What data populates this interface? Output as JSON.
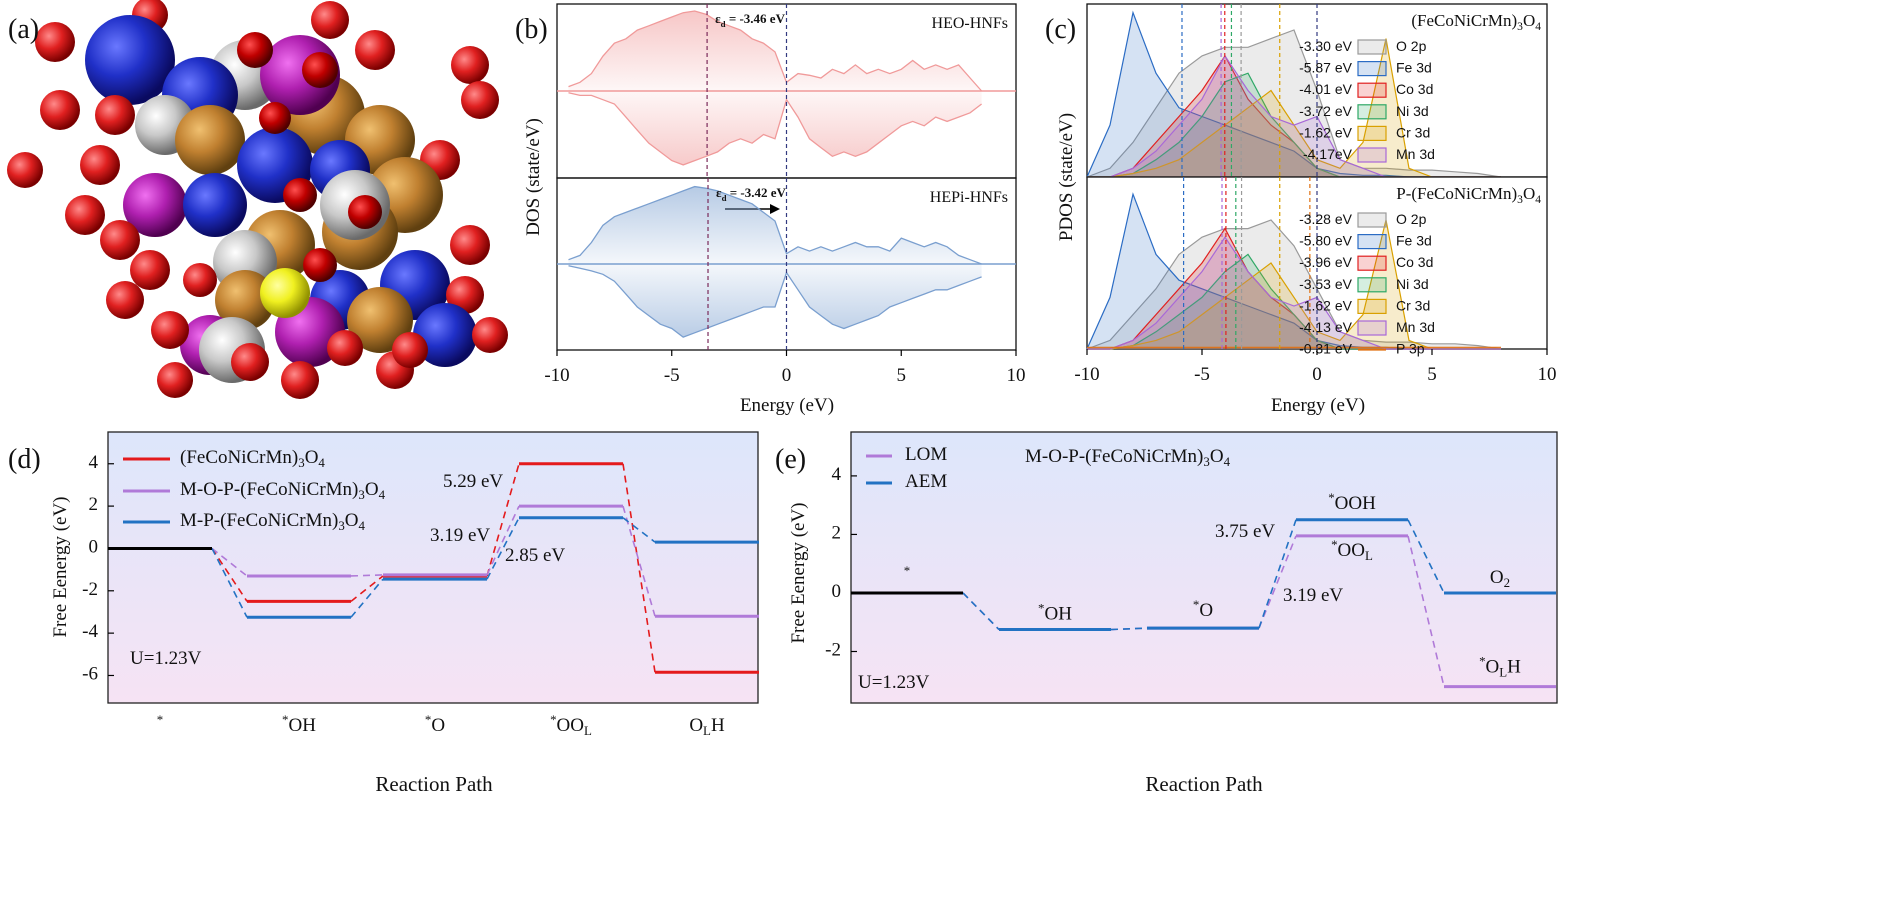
{
  "panel_labels": [
    "(a)",
    "(b)",
    "(c)",
    "(d)",
    "(e)"
  ],
  "chart_data": [
    {
      "type": "dos",
      "xlabel": "Energy (eV)",
      "ylabel": "DOS (state/eV)",
      "xlim": [
        -10,
        10
      ],
      "xticks": [
        -10,
        -5,
        0,
        5,
        10
      ],
      "x": [
        -9.5,
        -9,
        -8.5,
        -8,
        -7.5,
        -7,
        -6.5,
        -6,
        -5.5,
        -5,
        -4.5,
        -4,
        -3.5,
        -3,
        -2.5,
        -2,
        -1.5,
        -1,
        -0.5,
        0,
        0.5,
        1,
        1.5,
        2,
        2.5,
        3,
        3.5,
        4,
        4.5,
        5,
        5.5,
        6,
        6.5,
        7,
        7.5,
        8,
        8.5
      ],
      "subplots": [
        {
          "title": "HEO-HNFs",
          "color": "#f09a9a",
          "ylim": [
            -1,
            1
          ],
          "vlines": [
            -3.46,
            0
          ],
          "annotation": "εd = -3.46 eV",
          "up": [
            0.05,
            0.1,
            0.2,
            0.4,
            0.55,
            0.6,
            0.7,
            0.75,
            0.8,
            0.85,
            0.9,
            0.92,
            0.88,
            0.8,
            0.75,
            0.7,
            0.6,
            0.55,
            0.45,
            0.1,
            0.2,
            0.18,
            0.15,
            0.25,
            0.2,
            0.3,
            0.2,
            0.25,
            0.2,
            0.25,
            0.35,
            0.25,
            0.3,
            0.25,
            0.3,
            0.15,
            0
          ],
          "down": [
            -0.02,
            -0.05,
            -0.05,
            -0.1,
            -0.15,
            -0.3,
            -0.45,
            -0.6,
            -0.7,
            -0.8,
            -0.85,
            -0.8,
            -0.75,
            -0.7,
            -0.6,
            -0.55,
            -0.6,
            -0.5,
            -0.55,
            -0.1,
            -0.3,
            -0.55,
            -0.65,
            -0.75,
            -0.7,
            -0.75,
            -0.7,
            -0.6,
            -0.5,
            -0.4,
            -0.35,
            -0.4,
            -0.3,
            -0.35,
            -0.3,
            -0.25,
            -0.15
          ]
        },
        {
          "title": "HEPi-HNFs",
          "color": "#7a9fcf",
          "ylim": [
            -1,
            1
          ],
          "vlines": [
            -3.42,
            0
          ],
          "annotation": "εd = -3.42 eV",
          "up": [
            0.05,
            0.1,
            0.25,
            0.45,
            0.55,
            0.6,
            0.65,
            0.7,
            0.75,
            0.8,
            0.85,
            0.9,
            0.88,
            0.85,
            0.8,
            0.75,
            0.7,
            0.6,
            0.5,
            0.12,
            0.2,
            0.15,
            0.2,
            0.15,
            0.2,
            0.25,
            0.2,
            0.2,
            0.15,
            0.3,
            0.25,
            0.2,
            0.25,
            0.2,
            0.1,
            0.05,
            0
          ],
          "down": [
            -0.02,
            -0.05,
            -0.08,
            -0.12,
            -0.2,
            -0.35,
            -0.5,
            -0.6,
            -0.7,
            -0.75,
            -0.85,
            -0.8,
            -0.75,
            -0.7,
            -0.65,
            -0.6,
            -0.55,
            -0.5,
            -0.5,
            -0.1,
            -0.3,
            -0.5,
            -0.6,
            -0.7,
            -0.75,
            -0.7,
            -0.65,
            -0.6,
            -0.5,
            -0.45,
            -0.4,
            -0.35,
            -0.3,
            -0.3,
            -0.25,
            -0.2,
            -0.15
          ]
        }
      ]
    },
    {
      "type": "pdos",
      "xlabel": "Energy (eV)",
      "ylabel": "PDOS (state/eV)",
      "xlim": [
        -10,
        10
      ],
      "xticks": [
        -10,
        -5,
        0,
        5,
        10
      ],
      "x": [
        -10,
        -9,
        -8,
        -7,
        -6,
        -5,
        -4,
        -3,
        -2,
        -1,
        0,
        1,
        2,
        3,
        4,
        5,
        6,
        7,
        8
      ],
      "subplots": [
        {
          "title": "(FeCoNiCrMn)3O4",
          "ylim": [
            0,
            1
          ],
          "vlines": [
            0
          ],
          "series": [
            {
              "name": "O 2p",
              "color": "#9a9a9a",
              "center": -3.3,
              "center_label": "-3.30 eV",
              "values": [
                0,
                0.05,
                0.2,
                0.4,
                0.6,
                0.7,
                0.75,
                0.75,
                0.8,
                0.85,
                0.5,
                0.1,
                0.05,
                0.05,
                0.04,
                0.04,
                0.03,
                0.02,
                0
              ]
            },
            {
              "name": "Fe 3d",
              "color": "#2b6cc4",
              "center": -5.87,
              "center_label": "-5.87 eV",
              "values": [
                0,
                0.3,
                0.95,
                0.6,
                0.4,
                0.35,
                0.3,
                0.25,
                0.2,
                0.15,
                0.05,
                0.02,
                0.01,
                0.01,
                0,
                0,
                0,
                0,
                0
              ]
            },
            {
              "name": "Co 3d",
              "color": "#e02020",
              "center": -4.01,
              "center_label": "-4.01 eV",
              "values": [
                0,
                0,
                0.05,
                0.2,
                0.35,
                0.5,
                0.7,
                0.45,
                0.3,
                0.2,
                0.05,
                0,
                0,
                0,
                0,
                0,
                0,
                0,
                0
              ]
            },
            {
              "name": "Ni 3d",
              "color": "#2ea866",
              "center": -3.72,
              "center_label": "-3.72 eV",
              "values": [
                0,
                0,
                0.02,
                0.1,
                0.2,
                0.35,
                0.55,
                0.6,
                0.35,
                0.2,
                0.05,
                0,
                0,
                0,
                0,
                0,
                0,
                0,
                0
              ]
            },
            {
              "name": "Cr 3d",
              "color": "#d9a000",
              "center": -1.62,
              "center_label": "-1.62 eV",
              "values": [
                0,
                0,
                0.02,
                0.05,
                0.1,
                0.2,
                0.3,
                0.4,
                0.5,
                0.3,
                0.1,
                0.05,
                0.2,
                0.8,
                0.05,
                0,
                0,
                0,
                0
              ]
            },
            {
              "name": "Mn 3d",
              "color": "#a868d8",
              "center": -4.17,
              "center_label": "-4.17eV",
              "values": [
                0,
                0,
                0.05,
                0.15,
                0.3,
                0.45,
                0.7,
                0.5,
                0.35,
                0.3,
                0.35,
                0.1,
                0.05,
                0,
                0,
                0,
                0,
                0,
                0
              ]
            }
          ]
        },
        {
          "title": "P-(FeCoNiCrMn)3O4",
          "ylim": [
            0,
            1
          ],
          "vlines": [
            0
          ],
          "series": [
            {
              "name": "O 2p",
              "color": "#9a9a9a",
              "center": -3.28,
              "center_label": "-3.28 eV",
              "values": [
                0,
                0.05,
                0.2,
                0.35,
                0.55,
                0.65,
                0.7,
                0.7,
                0.75,
                0.6,
                0.35,
                0.1,
                0.05,
                0.04,
                0.04,
                0.03,
                0.03,
                0.02,
                0
              ]
            },
            {
              "name": "Fe 3d",
              "color": "#2b6cc4",
              "center": -5.8,
              "center_label": "-5.80 eV",
              "values": [
                0,
                0.3,
                0.9,
                0.55,
                0.4,
                0.35,
                0.3,
                0.25,
                0.2,
                0.15,
                0.05,
                0.02,
                0.01,
                0.01,
                0,
                0,
                0,
                0,
                0
              ]
            },
            {
              "name": "Co 3d",
              "color": "#e02020",
              "center": -3.96,
              "center_label": "-3.96 eV",
              "values": [
                0,
                0,
                0.05,
                0.2,
                0.35,
                0.5,
                0.7,
                0.45,
                0.3,
                0.2,
                0.05,
                0,
                0,
                0,
                0,
                0,
                0,
                0,
                0
              ]
            },
            {
              "name": "Ni 3d",
              "color": "#2ea866",
              "center": -3.53,
              "center_label": "-3.53 eV",
              "values": [
                0,
                0,
                0.02,
                0.1,
                0.2,
                0.3,
                0.45,
                0.55,
                0.35,
                0.2,
                0.05,
                0,
                0,
                0,
                0,
                0,
                0,
                0,
                0
              ]
            },
            {
              "name": "Cr 3d",
              "color": "#d9a000",
              "center": -1.62,
              "center_label": "-1.62 eV",
              "values": [
                0,
                0,
                0.02,
                0.05,
                0.1,
                0.2,
                0.3,
                0.4,
                0.5,
                0.3,
                0.1,
                0.05,
                0.2,
                0.75,
                0.05,
                0,
                0,
                0,
                0
              ]
            },
            {
              "name": "Mn 3d",
              "color": "#a868d8",
              "center": -4.13,
              "center_label": "-4.13 eV",
              "values": [
                0,
                0,
                0.05,
                0.15,
                0.3,
                0.45,
                0.65,
                0.45,
                0.3,
                0.25,
                0.3,
                0.1,
                0.05,
                0,
                0,
                0,
                0,
                0,
                0
              ]
            },
            {
              "name": "P 3p",
              "color": "#e07010",
              "center": -0.31,
              "center_label": "-0.31 eV",
              "values": [
                0.01,
                0.01,
                0.01,
                0.01,
                0.01,
                0.01,
                0.01,
                0.01,
                0.01,
                0.01,
                0.01,
                0.01,
                0.01,
                0.01,
                0.01,
                0.01,
                0.01,
                0.01,
                0.01
              ]
            }
          ]
        }
      ]
    },
    {
      "type": "energy",
      "xlabel": "Reaction Path",
      "ylabel": "Free Eenergy (eV)",
      "ylim": [
        -7.3,
        5.5
      ],
      "yticks": [
        -6,
        -4,
        -2,
        0,
        2,
        4
      ],
      "categories": [
        "*",
        "*OH",
        "*O",
        "*OOL",
        "OLH"
      ],
      "start_color": "#000000",
      "condition": "U=1.23V",
      "series": [
        {
          "name": "(FeCoNiCrMn)3O4",
          "color": "#e41a1c",
          "values": [
            0,
            -2.5,
            -1.3,
            4.0,
            -5.85
          ]
        },
        {
          "name": "M-O-P-(FeCoNiCrMn)3O4",
          "color": "#b07ad8",
          "values": [
            0,
            -1.3,
            -1.25,
            2.0,
            -3.2
          ]
        },
        {
          "name": "M-P-(FeCoNiCrMn)3O4",
          "color": "#2272c3",
          "values": [
            0,
            -3.25,
            -1.45,
            1.45,
            0.3
          ]
        }
      ],
      "annotations": [
        {
          "text": "5.29 eV",
          "color": "#e41a1c"
        },
        {
          "text": "3.19 eV",
          "color": "#9b4fc8"
        },
        {
          "text": "2.85 eV",
          "color": "#2272c3"
        }
      ]
    },
    {
      "type": "energy",
      "title": "M-O-P-(FeCoNiCrMn)3O4",
      "xlabel": "Reaction Path",
      "ylabel": "Free Eenergy (eV)",
      "ylim": [
        -3.76,
        5.5
      ],
      "yticks": [
        -2,
        0,
        2,
        4
      ],
      "start_color": "#000000",
      "condition": "U=1.23V",
      "series": [
        {
          "name": "LOM",
          "color": "#b07ad8",
          "values": [
            0,
            -1.25,
            -1.2,
            1.95,
            -3.2
          ],
          "labels": [
            null,
            null,
            null,
            "*OOL",
            "*OLH"
          ]
        },
        {
          "name": "AEM",
          "color": "#2272c3",
          "values": [
            0,
            -1.25,
            -1.2,
            2.5,
            0
          ],
          "labels": [
            "*",
            "*OH",
            "*O",
            "*OOH",
            "O2"
          ]
        }
      ],
      "annotations": [
        {
          "text": "3.75 eV",
          "color": "#2272c3"
        },
        {
          "text": "3.19 eV",
          "color": "#9b4fc8"
        }
      ]
    }
  ]
}
